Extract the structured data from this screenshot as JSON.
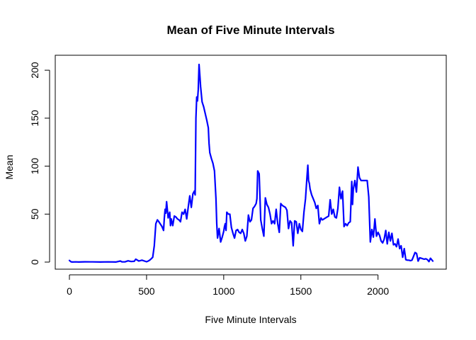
{
  "chart_data": {
    "type": "line",
    "title": "Mean of Five Minute Intervals",
    "xlabel": "Five Minute Intervals",
    "ylabel": "Mean",
    "xlim": [
      0,
      2355
    ],
    "ylim": [
      0,
      206
    ],
    "x_ticks": [
      0,
      500,
      1000,
      1500,
      2000
    ],
    "y_ticks": [
      0,
      50,
      100,
      150,
      200
    ],
    "grid": false,
    "line_color": "#0000ff",
    "series": [
      {
        "x": [
          0,
          10,
          20,
          40,
          60,
          100,
          150,
          200,
          250,
          300,
          330,
          340,
          360,
          380,
          400,
          420,
          430,
          450,
          470,
          500,
          510,
          520,
          530,
          540,
          550,
          560,
          570,
          580,
          600,
          610,
          615,
          620,
          625,
          630,
          640,
          650,
          655,
          660,
          670,
          680,
          690,
          700,
          710,
          720,
          730,
          740,
          750,
          760,
          770,
          780,
          790,
          800,
          810,
          815,
          820,
          825,
          830,
          835,
          840,
          845,
          850,
          860,
          870,
          880,
          890,
          900,
          905,
          910,
          920,
          930,
          940,
          950,
          955,
          960,
          970,
          980,
          990,
          1000,
          1005,
          1010,
          1015,
          1020,
          1030,
          1040,
          1050,
          1060,
          1070,
          1080,
          1090,
          1100,
          1110,
          1120,
          1130,
          1140,
          1150,
          1160,
          1170,
          1180,
          1190,
          1200,
          1210,
          1215,
          1220,
          1230,
          1240,
          1250,
          1260,
          1270,
          1280,
          1290,
          1300,
          1310,
          1320,
          1330,
          1340,
          1350,
          1360,
          1370,
          1380,
          1390,
          1400,
          1410,
          1420,
          1430,
          1440,
          1450,
          1460,
          1470,
          1480,
          1490,
          1500,
          1510,
          1520,
          1530,
          1540,
          1545,
          1550,
          1555,
          1560,
          1570,
          1580,
          1590,
          1600,
          1610,
          1620,
          1630,
          1640,
          1650,
          1660,
          1670,
          1680,
          1690,
          1700,
          1710,
          1720,
          1730,
          1740,
          1750,
          1760,
          1770,
          1780,
          1790,
          1800,
          1810,
          1820,
          1830,
          1835,
          1840,
          1850,
          1860,
          1870,
          1880,
          1890,
          1900,
          1910,
          1920,
          1930,
          1940,
          1950,
          1960,
          1970,
          1980,
          1990,
          2000,
          2010,
          2020,
          2030,
          2040,
          2050,
          2060,
          2070,
          2080,
          2090,
          2100,
          2110,
          2120,
          2130,
          2140,
          2150,
          2160,
          2170,
          2180,
          2190,
          2200,
          2210,
          2220,
          2230,
          2240,
          2250,
          2260,
          2270,
          2280,
          2290,
          2300,
          2310,
          2320,
          2330,
          2340,
          2355
        ],
        "y": [
          1.7,
          0.3,
          0.1,
          0.2,
          0.1,
          0.3,
          0.2,
          0.1,
          0.2,
          0.1,
          1.1,
          0.3,
          0.2,
          1.3,
          0.6,
          0.8,
          3.0,
          1.1,
          2.0,
          0.4,
          1.0,
          2.0,
          3.5,
          5.0,
          17.0,
          40.0,
          44.0,
          42.0,
          37.0,
          33.0,
          46.0,
          55.0,
          51.0,
          63.0,
          46.0,
          52.0,
          38.0,
          45.0,
          38.0,
          48.0,
          47.0,
          45.0,
          44.0,
          42.0,
          52.0,
          50.0,
          55.0,
          45.0,
          57.0,
          69.0,
          57.0,
          71.0,
          74.0,
          70.0,
          150.0,
          172.0,
          168.0,
          180.0,
          206.0,
          195.0,
          183.0,
          167.0,
          162.0,
          155.0,
          148.0,
          140.0,
          124.0,
          114.0,
          108.0,
          103.0,
          95.0,
          66.0,
          40.0,
          25.0,
          35.0,
          21.0,
          26.0,
          32.0,
          37.0,
          40.0,
          33.0,
          52.0,
          50.0,
          50.0,
          36.0,
          30.0,
          25.0,
          33.0,
          34.0,
          31.0,
          30.0,
          34.0,
          30.0,
          22.0,
          27.0,
          49.0,
          42.0,
          44.0,
          56.0,
          58.0,
          61.0,
          66.0,
          95.0,
          92.0,
          44.0,
          35.0,
          27.0,
          67.0,
          60.0,
          57.0,
          50.0,
          40.0,
          43.0,
          40.0,
          55.0,
          40.0,
          31.0,
          61.0,
          59.0,
          58.0,
          57.0,
          54.0,
          35.0,
          43.0,
          41.0,
          17.0,
          43.0,
          42.0,
          30.0,
          40.0,
          34.0,
          32.0,
          52.0,
          66.0,
          90.0,
          101.0,
          85.0,
          82.0,
          76.0,
          70.0,
          66.0,
          62.0,
          56.0,
          59.0,
          40.0,
          46.0,
          44.0,
          45.0,
          46.0,
          47.0,
          48.0,
          65.0,
          50.0,
          55.0,
          47.0,
          46.0,
          56.0,
          78.0,
          66.0,
          74.0,
          37.0,
          40.0,
          38.0,
          41.0,
          42.0,
          84.0,
          60.0,
          76.0,
          85.0,
          73.0,
          99.0,
          88.0,
          85.0,
          85.0,
          85.0,
          85.0,
          85.0,
          68.0,
          21.0,
          34.0,
          26.0,
          45.0,
          27.0,
          31.0,
          28.0,
          22.0,
          20.0,
          24.0,
          33.0,
          19.0,
          31.0,
          22.0,
          30.0,
          18.0,
          19.0,
          16.0,
          24.0,
          14.0,
          17.0,
          5.0,
          14.0,
          2.5,
          2.0,
          2.0,
          1.5,
          2.0,
          6.0,
          10.0,
          9.0,
          1.0,
          4.5,
          4.0,
          3.5,
          3.0,
          3.5,
          2.5,
          0.5,
          4.0,
          1.0
        ]
      }
    ]
  }
}
